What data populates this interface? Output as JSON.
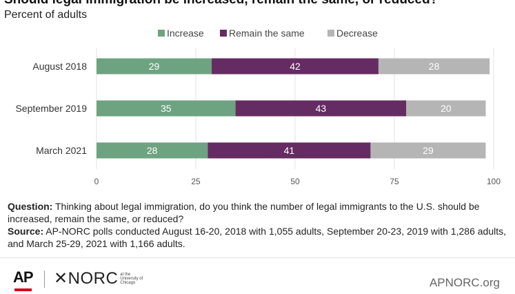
{
  "header": {
    "title": "Should legal immigration be increased, remain the same, or reduced?",
    "subtitle": "Percent of adults"
  },
  "chart_data": {
    "type": "bar",
    "orientation": "horizontal",
    "stacked": true,
    "categories": [
      "August 2018",
      "September 2019",
      "March 2021"
    ],
    "series": [
      {
        "name": "Increase",
        "values": [
          29,
          35,
          28
        ],
        "color": "#6ea381"
      },
      {
        "name": "Remain the same",
        "values": [
          42,
          43,
          41
        ],
        "color": "#652c63"
      },
      {
        "name": "Decrease",
        "values": [
          28,
          20,
          29
        ],
        "color": "#b5b5b5"
      }
    ],
    "xlim": [
      0,
      100
    ],
    "xticks": [
      "0",
      "25",
      "50",
      "75",
      "100"
    ],
    "grid": true,
    "legend_position": "top"
  },
  "notes": {
    "question_label": "Question:",
    "question_text": " Thinking about legal immigration, do you think the number of legal immigrants to the U.S. should be increased, remain the same, or reduced?",
    "source_label": "Source:",
    "source_text": " AP-NORC polls conducted August 16-20, 2018 with 1,055 adults, September 20-23, 2019 with 1,286 adults, and March 25-29, 2021 with 1,166 adults."
  },
  "footer": {
    "ap_logo": "AP",
    "norc_logo": "✕NORC",
    "norc_subtext": "at the University of Chicago",
    "website": "APNORC.org"
  }
}
